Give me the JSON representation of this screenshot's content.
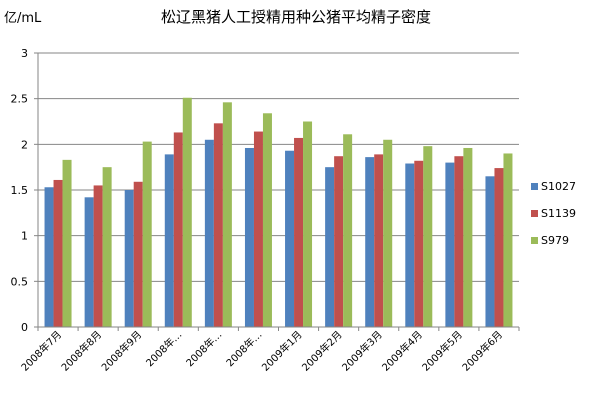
{
  "chart_data": {
    "type": "bar",
    "title": "松辽黑猪人工授精用种公猪平均精子密度",
    "ylabel": "亿/mL",
    "xlabel": "",
    "ylim": [
      0,
      3
    ],
    "yticks": [
      "0",
      "0.5",
      "1",
      "1.5",
      "2",
      "2.5",
      "3"
    ],
    "grid": true,
    "legend_position": "right",
    "categories": [
      "2008年7月",
      "2008年8月",
      "2008年9月",
      "2008年…",
      "2008年…",
      "2008年…",
      "2009年1月",
      "2009年2月",
      "2009年3月",
      "2009年4月",
      "2009年5月",
      "2009年6月"
    ],
    "series": [
      {
        "name": "S1027",
        "color": "#4f81bd",
        "values": [
          1.53,
          1.42,
          1.5,
          1.89,
          2.05,
          1.96,
          1.93,
          1.75,
          1.86,
          1.79,
          1.8,
          1.65
        ]
      },
      {
        "name": "S1139",
        "color": "#c0504d",
        "values": [
          1.61,
          1.55,
          1.59,
          2.13,
          2.23,
          2.14,
          2.07,
          1.87,
          1.89,
          1.82,
          1.87,
          1.74
        ]
      },
      {
        "name": "S979",
        "color": "#9bbb59",
        "values": [
          1.83,
          1.75,
          2.03,
          2.51,
          2.46,
          2.34,
          2.25,
          2.11,
          2.05,
          1.98,
          1.96,
          1.9
        ]
      }
    ]
  }
}
